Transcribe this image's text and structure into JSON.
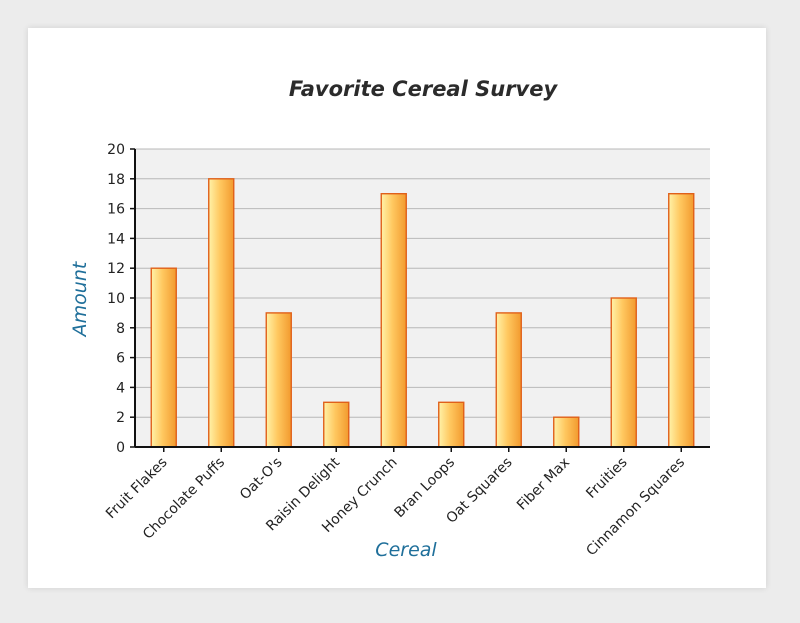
{
  "chart_data": {
    "type": "bar",
    "title": "Favorite Cereal Survey",
    "xlabel": "Cereal",
    "ylabel": "Amount",
    "categories": [
      "Fruit Flakes",
      "Chocolate Puffs",
      "Oat-O's",
      "Raisin Delight",
      "Honey Crunch",
      "Bran Loops",
      "Oat Squares",
      "Fiber Max",
      "Fruities",
      "Cinnamon Squares"
    ],
    "values": [
      12,
      18,
      9,
      3,
      17,
      3,
      9,
      2,
      10,
      17
    ],
    "ylim": [
      0,
      20
    ],
    "yticks": [
      0,
      2,
      4,
      6,
      8,
      10,
      12,
      14,
      16,
      18,
      20
    ],
    "grid": true,
    "legend": "none",
    "colors": {
      "bar_light": "#fff2a8",
      "bar_mid": "#ffc860",
      "bar_dark": "#f29a2e",
      "bar_outline": "#e0601a",
      "plot_background": "#f1f1f1",
      "gridline": "#b8b8b8",
      "axis": "#111111",
      "axis_title": "#1f6f9a"
    }
  }
}
